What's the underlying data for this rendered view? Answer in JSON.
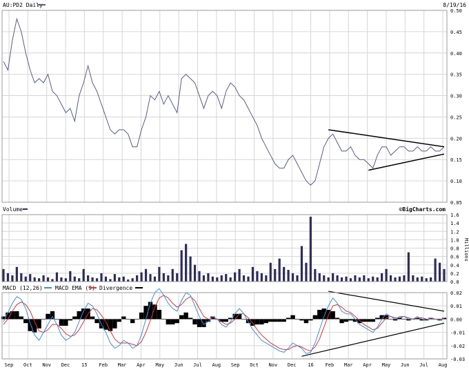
{
  "colors": {
    "price": "#5a5a8c",
    "volume": "#2d2d5a",
    "macd": "#3a8ee6",
    "ema": "#d9342b",
    "divergence": "#000000",
    "grid": "#d6d6d6",
    "border": "#999999",
    "trendline": "#000000"
  },
  "chart_data": [
    {
      "type": "line",
      "panel": "price",
      "title": "AU:PD2 Daily",
      "date_label": "8/19/16",
      "ylim": [
        0.05,
        0.5
      ],
      "yticks": [
        "0.50",
        "0.45",
        "0.40",
        "0.35",
        "0.30",
        "0.25",
        "0.20",
        "0.15",
        "0.10",
        "0.05"
      ],
      "x_months": [
        "Sep",
        "Oct",
        "Nov",
        "Dec",
        "15",
        "Feb",
        "Mar",
        "Apr",
        "May",
        "Jun",
        "Jul",
        "Aug",
        "Sep",
        "Oct",
        "Nov",
        "Dec",
        "16",
        "Feb",
        "Mar",
        "Apr",
        "May",
        "Jun",
        "Jul",
        "Aug"
      ],
      "x": [
        0,
        1,
        2,
        3,
        4,
        5,
        6,
        7,
        8,
        9,
        10,
        11,
        12,
        13,
        14,
        15,
        16,
        17,
        18,
        19,
        20,
        21,
        22,
        23,
        24,
        25,
        26,
        27,
        28,
        29,
        30,
        31,
        32,
        33,
        34,
        35,
        36,
        37,
        38,
        39,
        40,
        41,
        42,
        43,
        44,
        45,
        46,
        47,
        48,
        49,
        50,
        51,
        52,
        53,
        54,
        55,
        56,
        57,
        58,
        59,
        60,
        61,
        62,
        63,
        64,
        65,
        66,
        67,
        68,
        69,
        70,
        71,
        72,
        73,
        74,
        75,
        76,
        77,
        78,
        79,
        80,
        81,
        82,
        83,
        84,
        85,
        86,
        87,
        88,
        89,
        90,
        91,
        92,
        93,
        94,
        95,
        96,
        97,
        98,
        99
      ],
      "values": [
        0.38,
        0.36,
        0.43,
        0.48,
        0.45,
        0.4,
        0.36,
        0.33,
        0.34,
        0.33,
        0.35,
        0.31,
        0.3,
        0.28,
        0.26,
        0.27,
        0.24,
        0.3,
        0.33,
        0.37,
        0.33,
        0.31,
        0.28,
        0.25,
        0.22,
        0.21,
        0.22,
        0.22,
        0.21,
        0.18,
        0.18,
        0.22,
        0.25,
        0.3,
        0.29,
        0.31,
        0.28,
        0.3,
        0.28,
        0.26,
        0.34,
        0.35,
        0.34,
        0.33,
        0.3,
        0.27,
        0.3,
        0.31,
        0.3,
        0.27,
        0.31,
        0.33,
        0.32,
        0.3,
        0.29,
        0.27,
        0.25,
        0.23,
        0.2,
        0.18,
        0.16,
        0.14,
        0.13,
        0.13,
        0.15,
        0.16,
        0.14,
        0.12,
        0.1,
        0.09,
        0.1,
        0.14,
        0.18,
        0.2,
        0.21,
        0.19,
        0.17,
        0.17,
        0.18,
        0.16,
        0.15,
        0.15,
        0.14,
        0.13,
        0.16,
        0.18,
        0.18,
        0.16,
        0.17,
        0.18,
        0.18,
        0.17,
        0.17,
        0.18,
        0.17,
        0.17,
        0.18,
        0.17,
        0.17,
        0.18
      ],
      "trendlines": [
        {
          "from": [
            73,
            0.22
          ],
          "to": [
            99,
            0.18
          ]
        },
        {
          "from": [
            82,
            0.125
          ],
          "to": [
            99,
            0.163
          ]
        }
      ]
    },
    {
      "type": "bar",
      "panel": "volume",
      "title": "Volume",
      "source_label": "©BigCharts.com",
      "ylabel": "Millions",
      "ylim": [
        0,
        1.6
      ],
      "yticks": [
        "1.6",
        "1.4",
        "1.2",
        "1.0",
        "0.8",
        "0.6",
        "0.4",
        "0.2",
        "0.0"
      ],
      "x": [
        0,
        1,
        2,
        3,
        4,
        5,
        6,
        7,
        8,
        9,
        10,
        11,
        12,
        13,
        14,
        15,
        16,
        17,
        18,
        19,
        20,
        21,
        22,
        23,
        24,
        25,
        26,
        27,
        28,
        29,
        30,
        31,
        32,
        33,
        34,
        35,
        36,
        37,
        38,
        39,
        40,
        41,
        42,
        43,
        44,
        45,
        46,
        47,
        48,
        49,
        50,
        51,
        52,
        53,
        54,
        55,
        56,
        57,
        58,
        59,
        60,
        61,
        62,
        63,
        64,
        65,
        66,
        67,
        68,
        69,
        70,
        71,
        72,
        73,
        74,
        75,
        76,
        77,
        78,
        79,
        80,
        81,
        82,
        83,
        84,
        85,
        86,
        87,
        88,
        89,
        90,
        91,
        92,
        93,
        94,
        95,
        96,
        97,
        98,
        99
      ],
      "values": [
        0.3,
        0.2,
        0.15,
        0.35,
        0.2,
        0.12,
        0.18,
        0.1,
        0.08,
        0.15,
        0.1,
        0.06,
        0.22,
        0.1,
        0.08,
        0.25,
        0.12,
        0.08,
        0.3,
        0.15,
        0.1,
        0.08,
        0.2,
        0.12,
        0.06,
        0.18,
        0.1,
        0.12,
        0.05,
        0.08,
        0.15,
        0.22,
        0.3,
        0.18,
        0.12,
        0.35,
        0.2,
        0.15,
        0.3,
        0.2,
        0.75,
        0.9,
        0.6,
        0.4,
        0.25,
        0.15,
        0.2,
        0.12,
        0.1,
        0.15,
        0.18,
        0.1,
        0.22,
        0.3,
        0.15,
        0.12,
        0.35,
        0.25,
        0.2,
        0.15,
        0.45,
        0.3,
        0.55,
        0.35,
        0.28,
        0.2,
        0.15,
        0.85,
        0.45,
        1.55,
        0.3,
        0.2,
        0.15,
        0.1,
        0.2,
        0.15,
        0.1,
        0.12,
        0.08,
        0.15,
        0.1,
        0.15,
        0.08,
        0.12,
        0.1,
        0.2,
        0.3,
        0.15,
        0.1,
        0.12,
        0.15,
        0.7,
        0.15,
        0.1,
        0.12,
        0.08,
        0.1,
        0.55,
        0.45,
        0.3
      ]
    },
    {
      "type": "line",
      "panel": "macd",
      "title": "MACD (12,26)",
      "ylim": [
        -0.03,
        0.02
      ],
      "yticks": [
        "0.02",
        "0.01",
        "0.00",
        "-0.01",
        "-0.02",
        "-0.03"
      ],
      "legend": [
        {
          "name": "MACD EMA (9)",
          "color_key": "ema"
        },
        {
          "name": "Divergence",
          "color_key": "divergence"
        }
      ],
      "x": [
        0,
        1,
        2,
        3,
        4,
        5,
        6,
        7,
        8,
        9,
        10,
        11,
        12,
        13,
        14,
        15,
        16,
        17,
        18,
        19,
        20,
        21,
        22,
        23,
        24,
        25,
        26,
        27,
        28,
        29,
        30,
        31,
        32,
        33,
        34,
        35,
        36,
        37,
        38,
        39,
        40,
        41,
        42,
        43,
        44,
        45,
        46,
        47,
        48,
        49,
        50,
        51,
        52,
        53,
        54,
        55,
        56,
        57,
        58,
        59,
        60,
        61,
        62,
        63,
        64,
        65,
        66,
        67,
        68,
        69,
        70,
        71,
        72,
        73,
        74,
        75,
        76,
        77,
        78,
        79,
        80,
        81,
        82,
        83,
        84,
        85,
        86,
        87,
        88,
        89,
        90,
        91,
        92,
        93,
        94,
        95,
        96,
        97,
        98,
        99
      ],
      "series": [
        {
          "name": "MACD",
          "color_key": "macd",
          "values": [
            -0.002,
            0.005,
            0.012,
            0.017,
            0.015,
            0.008,
            -0.003,
            -0.012,
            -0.016,
            -0.01,
            -0.004,
            0.002,
            -0.004,
            -0.012,
            -0.016,
            -0.014,
            -0.01,
            -0.002,
            0.006,
            0.012,
            0.01,
            0.004,
            -0.004,
            -0.01,
            -0.018,
            -0.022,
            -0.02,
            -0.016,
            -0.018,
            -0.022,
            -0.02,
            -0.012,
            0.0,
            0.012,
            0.02,
            0.023,
            0.018,
            0.012,
            0.008,
            0.006,
            0.014,
            0.02,
            0.018,
            0.01,
            0.002,
            -0.004,
            -0.002,
            0.002,
            0.0,
            -0.004,
            -0.006,
            -0.002,
            0.004,
            0.008,
            0.004,
            -0.002,
            -0.008,
            -0.012,
            -0.016,
            -0.018,
            -0.02,
            -0.022,
            -0.024,
            -0.025,
            -0.022,
            -0.018,
            -0.02,
            -0.022,
            -0.026,
            -0.025,
            -0.018,
            -0.008,
            0.002,
            0.01,
            0.016,
            0.012,
            0.006,
            0.004,
            0.004,
            0.0,
            -0.004,
            -0.006,
            -0.008,
            -0.01,
            -0.006,
            0.0,
            0.004,
            0.002,
            0.0,
            0.002,
            0.002,
            0.0,
            0.0,
            0.002,
            0.0,
            -0.001,
            0.001,
            0.0,
            -0.001,
            0.001
          ]
        },
        {
          "name": "MACD EMA (9)",
          "color_key": "ema",
          "values": [
            -0.004,
            0.0,
            0.006,
            0.011,
            0.013,
            0.011,
            0.006,
            -0.002,
            -0.009,
            -0.01,
            -0.008,
            -0.004,
            -0.004,
            -0.007,
            -0.011,
            -0.013,
            -0.012,
            -0.008,
            -0.002,
            0.004,
            0.008,
            0.007,
            0.003,
            -0.002,
            -0.009,
            -0.015,
            -0.018,
            -0.018,
            -0.018,
            -0.019,
            -0.02,
            -0.017,
            -0.01,
            -0.001,
            0.009,
            0.016,
            0.018,
            0.016,
            0.012,
            0.009,
            0.011,
            0.015,
            0.017,
            0.014,
            0.008,
            0.002,
            0.0,
            0.0,
            0.0,
            -0.002,
            -0.004,
            -0.003,
            0.0,
            0.004,
            0.004,
            0.001,
            -0.003,
            -0.008,
            -0.012,
            -0.015,
            -0.018,
            -0.02,
            -0.022,
            -0.023,
            -0.023,
            -0.021,
            -0.02,
            -0.021,
            -0.023,
            -0.024,
            -0.021,
            -0.015,
            -0.006,
            0.003,
            0.01,
            0.011,
            0.009,
            0.006,
            0.005,
            0.002,
            -0.001,
            -0.004,
            -0.006,
            -0.008,
            -0.007,
            -0.003,
            0.001,
            0.002,
            0.001,
            0.001,
            0.002,
            0.001,
            0.0,
            0.001,
            0.001,
            0.0,
            0.0,
            0.0,
            0.0,
            0.0
          ]
        }
      ],
      "divergence": [
        0.002,
        0.005,
        0.006,
        0.006,
        0.002,
        -0.003,
        -0.009,
        -0.01,
        -0.007,
        0.0,
        0.004,
        0.006,
        0.0,
        -0.005,
        -0.005,
        -0.001,
        0.002,
        0.006,
        0.008,
        0.008,
        0.002,
        -0.003,
        -0.007,
        -0.008,
        -0.009,
        -0.007,
        -0.002,
        0.002,
        0.0,
        -0.003,
        0.0,
        0.005,
        0.01,
        0.013,
        0.011,
        0.007,
        0.0,
        -0.004,
        -0.004,
        -0.003,
        0.003,
        0.005,
        0.001,
        -0.004,
        -0.006,
        -0.006,
        -0.002,
        0.002,
        0.0,
        -0.002,
        -0.002,
        0.001,
        0.004,
        0.004,
        0.0,
        -0.003,
        -0.005,
        -0.004,
        -0.004,
        -0.003,
        -0.002,
        -0.002,
        -0.002,
        -0.002,
        0.001,
        0.003,
        0.0,
        -0.001,
        -0.003,
        -0.001,
        0.003,
        0.007,
        0.008,
        0.007,
        0.006,
        0.001,
        -0.003,
        -0.002,
        -0.001,
        -0.002,
        -0.003,
        -0.002,
        -0.002,
        -0.002,
        0.001,
        0.003,
        0.003,
        0.0,
        -0.001,
        0.001,
        0.0,
        -0.001,
        0.0,
        0.001,
        -0.001,
        -0.001,
        0.001,
        0.0,
        -0.001,
        0.001
      ],
      "trendlines": [
        {
          "from": [
            73,
            0.021
          ],
          "to": [
            99,
            0.006
          ]
        },
        {
          "from": [
            67,
            -0.028
          ],
          "to": [
            99,
            -0.003
          ]
        }
      ]
    }
  ]
}
